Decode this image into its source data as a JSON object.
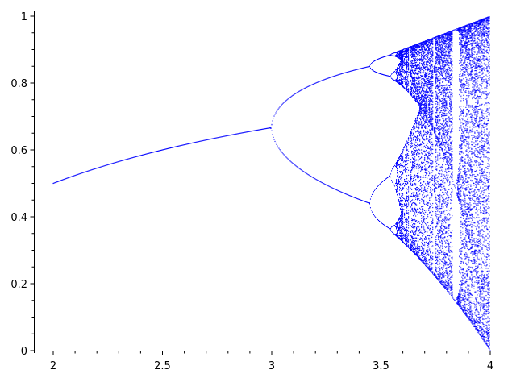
{
  "chart_data": {
    "type": "scatter",
    "title": "",
    "xlabel": "",
    "ylabel": "",
    "xlim": [
      1.91,
      4.03
    ],
    "ylim": [
      0,
      1.015
    ],
    "x_ticks": [
      "2",
      "2.5",
      "3",
      "3.5",
      "4"
    ],
    "x_tick_values": [
      2,
      2.5,
      3,
      3.5,
      4
    ],
    "y_ticks": [
      "0",
      "0.2",
      "0.4",
      "0.6",
      "0.8",
      "1"
    ],
    "y_tick_values": [
      0,
      0.2,
      0.4,
      0.6,
      0.8,
      1
    ],
    "grid": false,
    "legend": "none",
    "series": [
      {
        "color": "#0000ff",
        "marker": "point",
        "x_range": [
          2,
          4
        ],
        "rule": "long-run values of x(n+1) = r·x(n)·(1 − x(n)) against r"
      }
    ]
  }
}
